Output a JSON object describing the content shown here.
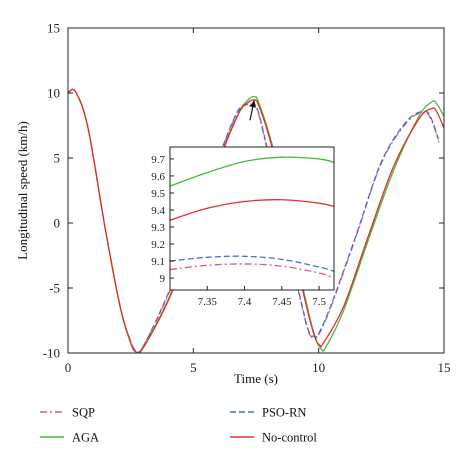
{
  "chart_data": {
    "type": "line",
    "xlabel": "Time (s)",
    "ylabel": "Longitudinal speed (km/h)",
    "xlim": [
      0,
      15
    ],
    "ylim": [
      -10,
      15
    ],
    "xticks": [
      0,
      5,
      10,
      15
    ],
    "yticks": [
      -10,
      -5,
      0,
      5,
      10,
      15
    ],
    "grid": false,
    "legend_position": "bottom",
    "series": [
      {
        "name": "SQP",
        "color": "#d65a8a",
        "dash": "7,3,2,3",
        "x": [
          0,
          0.3,
          0.8,
          1.5,
          2.1,
          2.5,
          2.7,
          3.0,
          4.0,
          5.0,
          6.0,
          6.8,
          7.3,
          7.44,
          7.6,
          8.0,
          8.6,
          9.2,
          9.6,
          9.85,
          10.0,
          10.5,
          11.5,
          12.5,
          13.5,
          14.2,
          14.5,
          14.8
        ],
        "y": [
          10.0,
          10.1,
          7.3,
          -0.6,
          -6.6,
          -9.1,
          -9.8,
          -9.5,
          -5.5,
          -0.5,
          4.9,
          8.6,
          9.05,
          9.1,
          8.4,
          5.2,
          0.0,
          -5.3,
          -8.4,
          -8.8,
          -8.6,
          -6.4,
          -1.0,
          4.6,
          7.7,
          8.5,
          7.9,
          6.2
        ]
      },
      {
        "name": "PSO-RN",
        "color": "#4a72c2",
        "dash": "6,3",
        "x": [
          0,
          0.3,
          0.8,
          1.5,
          2.1,
          2.5,
          2.7,
          3.0,
          4.0,
          5.0,
          6.0,
          6.8,
          7.3,
          7.41,
          7.6,
          8.0,
          8.6,
          9.2,
          9.6,
          9.85,
          10.0,
          10.5,
          11.5,
          12.5,
          13.5,
          14.2,
          14.5,
          14.8
        ],
        "y": [
          10.0,
          10.1,
          7.3,
          -0.6,
          -6.6,
          -9.1,
          -9.8,
          -9.5,
          -5.4,
          -0.4,
          5.0,
          8.7,
          9.1,
          9.13,
          8.5,
          5.3,
          0.1,
          -5.2,
          -8.3,
          -8.7,
          -8.5,
          -6.3,
          -0.9,
          4.7,
          7.8,
          8.6,
          8.0,
          6.3
        ]
      },
      {
        "name": "AGA",
        "color": "#46b93e",
        "dash": "",
        "x": [
          0,
          0.3,
          0.8,
          1.5,
          2.1,
          2.5,
          2.7,
          3.0,
          4.0,
          5.0,
          6.0,
          6.8,
          7.2,
          7.45,
          7.6,
          8.0,
          8.6,
          9.3,
          9.8,
          10.1,
          10.3,
          11.0,
          12.0,
          13.0,
          14.0,
          14.5,
          14.7,
          15.0
        ],
        "y": [
          10.0,
          10.1,
          7.3,
          -0.6,
          -6.6,
          -9.2,
          -9.9,
          -9.6,
          -6.0,
          -1.0,
          4.6,
          8.4,
          9.5,
          9.71,
          9.3,
          7.0,
          2.6,
          -4.3,
          -8.4,
          -9.7,
          -9.5,
          -6.7,
          -1.2,
          4.1,
          8.2,
          9.3,
          9.2,
          8.2
        ]
      },
      {
        "name": "No-control",
        "color": "#e3302a",
        "dash": "",
        "x": [
          0,
          0.3,
          0.8,
          1.5,
          2.1,
          2.5,
          2.7,
          3.0,
          4.0,
          5.0,
          6.0,
          6.8,
          7.2,
          7.45,
          7.6,
          8.0,
          8.6,
          9.3,
          9.8,
          10.05,
          10.2,
          11.0,
          12.0,
          13.0,
          14.0,
          14.5,
          14.7,
          15.0
        ],
        "y": [
          10.0,
          10.1,
          7.3,
          -0.6,
          -6.6,
          -9.2,
          -9.9,
          -9.6,
          -5.9,
          -0.9,
          4.7,
          8.4,
          9.3,
          9.46,
          9.1,
          6.8,
          2.3,
          -4.6,
          -8.5,
          -9.4,
          -9.2,
          -6.4,
          -0.9,
          4.4,
          8.0,
          8.8,
          8.6,
          7.3
        ]
      }
    ],
    "inset": {
      "xlim": [
        7.3,
        7.52
      ],
      "ylim": [
        8.93,
        9.77
      ],
      "xticks": [
        "7.35",
        "7.4",
        "7.45",
        "7.5"
      ],
      "yticks": [
        "9",
        "9.1",
        "9.2",
        "9.3",
        "9.4",
        "9.5",
        "9.6",
        "9.7"
      ],
      "series": [
        {
          "name": "SQP",
          "x": [
            7.3,
            7.35,
            7.4,
            7.45,
            7.5,
            7.52
          ],
          "y": [
            9.05,
            9.075,
            9.083,
            9.07,
            9.03,
            9.0
          ]
        },
        {
          "name": "PSO-RN",
          "x": [
            7.3,
            7.35,
            7.4,
            7.45,
            7.5,
            7.52
          ],
          "y": [
            9.1,
            9.122,
            9.128,
            9.11,
            9.065,
            9.04
          ]
        },
        {
          "name": "AGA",
          "x": [
            7.3,
            7.35,
            7.4,
            7.45,
            7.5,
            7.52
          ],
          "y": [
            9.54,
            9.62,
            9.685,
            9.71,
            9.7,
            9.68
          ]
        },
        {
          "name": "No-control",
          "x": [
            7.3,
            7.35,
            7.4,
            7.45,
            7.5,
            7.52
          ],
          "y": [
            9.34,
            9.41,
            9.45,
            9.46,
            9.44,
            9.42
          ]
        }
      ]
    },
    "annotation": {
      "type": "zoom-arrow",
      "from_x": 7.26,
      "from_y": 7.9,
      "to_x": 7.43,
      "to_y": 9.45
    }
  }
}
